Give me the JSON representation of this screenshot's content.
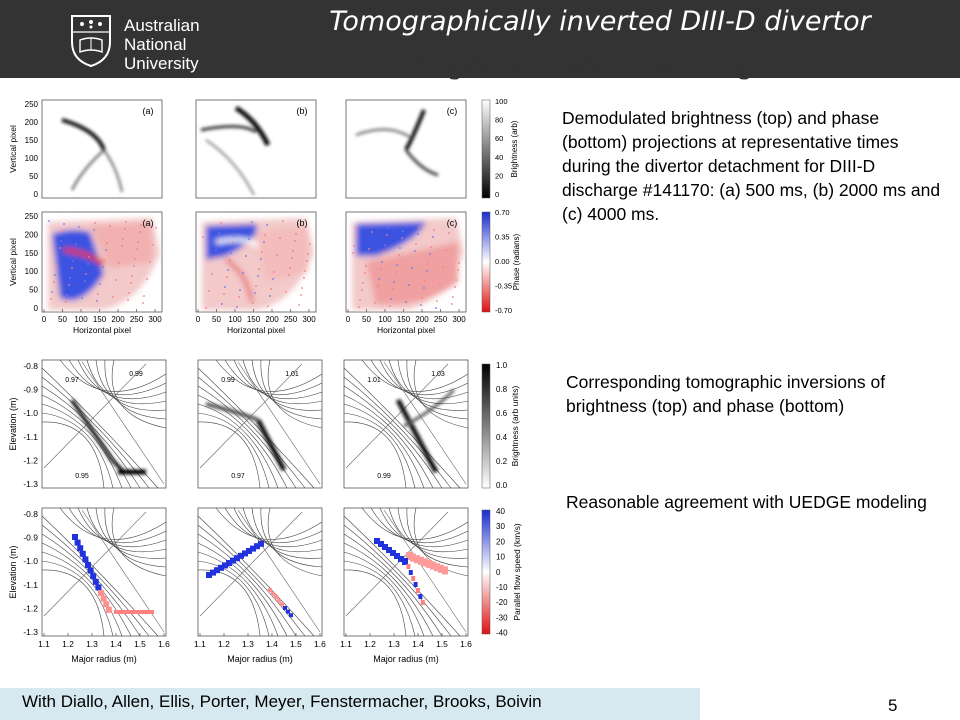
{
  "header": {
    "logo_lines": [
      "Australian",
      "National",
      "University"
    ],
    "title_line1": "Tomographically inverted DIII-D divertor",
    "title_line2": "brightness and flow images"
  },
  "captions": {
    "top": "Demodulated brightness (top) and phase (bottom) projections at representative times during the divertor detachment for DIII-D discharge #141170: (a) 500 ms, (b) 2000 ms and (c) 4000 ms.",
    "middle": "Corresponding tomographic inversions of brightness (top) and phase (bottom)",
    "bottom": "Reasonable agreement with UEDGE modeling"
  },
  "figure": {
    "panel_labels": [
      "(a)",
      "(b)",
      "(c)"
    ],
    "projections": {
      "y_label": "Vertical pixel",
      "x_label": "Horizontal pixel",
      "y_ticks": [
        "250",
        "200",
        "150",
        "100",
        "50",
        "0"
      ],
      "x_ticks": [
        "0",
        "50",
        "100",
        "150",
        "200",
        "250",
        "300"
      ],
      "brightness_colorbar": {
        "label": "Brightness (arb)",
        "ticks": [
          "100",
          "80",
          "60",
          "40",
          "20",
          "0"
        ]
      },
      "phase_colorbar": {
        "label": "Phase (radians)",
        "ticks": [
          "0.70",
          "0.35",
          "0.00",
          "-0.35",
          "-0.70"
        ]
      }
    },
    "inversions": {
      "y_label": "Elevation (m)",
      "x_label": "Major radius (m)",
      "y_ticks": [
        "-0.8",
        "-0.9",
        "-1.0",
        "-1.1",
        "-1.2",
        "-1.3"
      ],
      "x_ticks": [
        "1.1",
        "1.2",
        "1.3",
        "1.4",
        "1.5",
        "1.6"
      ],
      "brightness_colorbar": {
        "label": "Brightness (arb units)",
        "ticks": [
          "1.0",
          "0.8",
          "0.6",
          "0.4",
          "0.2",
          "0.0"
        ]
      },
      "flow_colorbar": {
        "label": "Parallel flow speed (km/s)",
        "ticks": [
          "40",
          "30",
          "20",
          "10",
          "0",
          "-10",
          "-20",
          "-30",
          "-40"
        ]
      },
      "contour_labels": [
        "0.97",
        "0.99",
        "1.01",
        "1.03",
        "0.95"
      ]
    }
  },
  "footer": {
    "authors": "With Diallo, Allen, Ellis, Porter, Meyer, Fenstermacher, Brooks, Boivin",
    "page_number": "5"
  },
  "colors": {
    "header_bg": "#333333",
    "footer_bg": "#d6e8f0",
    "phase_positive": "#2b3fd6",
    "phase_negative": "#e02020"
  }
}
